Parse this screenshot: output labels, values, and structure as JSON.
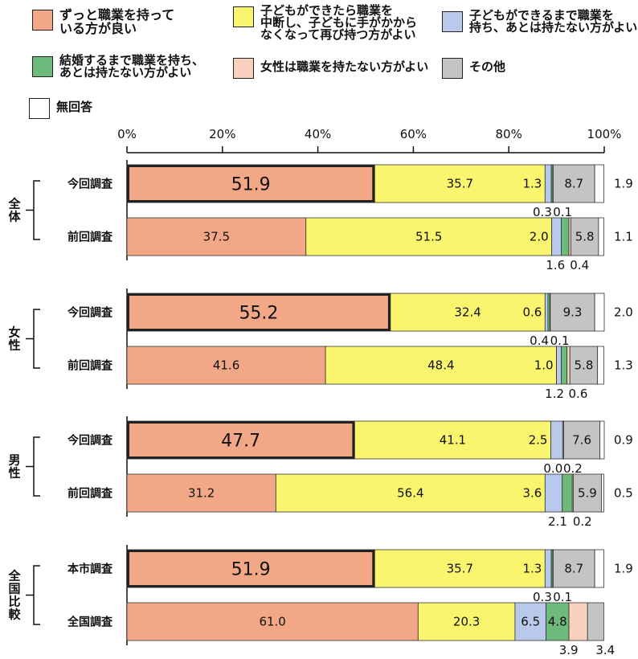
{
  "legend": [
    {
      "key": "s1",
      "label": "ずっと職業を持って\nいる方が良い",
      "color": "#F2A886"
    },
    {
      "key": "s2",
      "label": "子どもができたら職業を\n中断し、子どもに手がかから\nなくなって再び持つ方がよい",
      "color": "#FAF56E"
    },
    {
      "key": "s3",
      "label": "子どもができるまで職業を\n持ち、あとは持たない方がよい",
      "color": "#B8C9EC"
    },
    {
      "key": "s4",
      "label": "結婚するまで職業を持ち、\nあとは持たない方がよい",
      "color": "#6DBA7A"
    },
    {
      "key": "s5",
      "label": "女性は職業を持たない方がよい",
      "color": "#F9D2BE"
    },
    {
      "key": "s6",
      "label": "その他",
      "color": "#C4C4C4"
    },
    {
      "key": "s7",
      "label": "無回答",
      "color": "#FFFFFF"
    }
  ],
  "chart_data": {
    "type": "bar",
    "orientation": "horizontal",
    "stacked": true,
    "percent_scale": true,
    "xlim": [
      0,
      100
    ],
    "x_ticks": [
      "0%",
      "20%",
      "40%",
      "60%",
      "80%",
      "100%"
    ],
    "groups": [
      {
        "label": "全体",
        "rows": [
          {
            "label": "今回調査",
            "highlight": true,
            "values": [
              51.9,
              35.7,
              1.3,
              0.3,
              0.1,
              8.7,
              1.9
            ]
          },
          {
            "label": "前回調査",
            "highlight": false,
            "values": [
              37.5,
              51.5,
              2.0,
              1.6,
              0.4,
              5.8,
              1.1
            ]
          }
        ]
      },
      {
        "label": "女性",
        "rows": [
          {
            "label": "今回調査",
            "highlight": true,
            "values": [
              55.2,
              32.4,
              0.6,
              0.4,
              0.1,
              9.3,
              2.0
            ]
          },
          {
            "label": "前回調査",
            "highlight": false,
            "values": [
              41.6,
              48.4,
              1.0,
              1.2,
              0.6,
              5.8,
              1.3
            ]
          }
        ]
      },
      {
        "label": "男性",
        "rows": [
          {
            "label": "今回調査",
            "highlight": true,
            "values": [
              47.7,
              41.1,
              2.5,
              0.0,
              0.2,
              7.6,
              0.9
            ]
          },
          {
            "label": "前回調査",
            "highlight": false,
            "values": [
              31.2,
              56.4,
              3.6,
              2.1,
              0.2,
              5.9,
              0.5
            ]
          }
        ]
      },
      {
        "label": "全国比較",
        "rows": [
          {
            "label": "本市調査",
            "highlight": true,
            "values": [
              51.9,
              35.7,
              1.3,
              0.3,
              0.1,
              8.7,
              1.9
            ]
          },
          {
            "label": "全国調査",
            "highlight": false,
            "values": [
              61.0,
              20.3,
              6.5,
              4.8,
              3.9,
              3.4,
              null
            ]
          }
        ]
      }
    ]
  }
}
